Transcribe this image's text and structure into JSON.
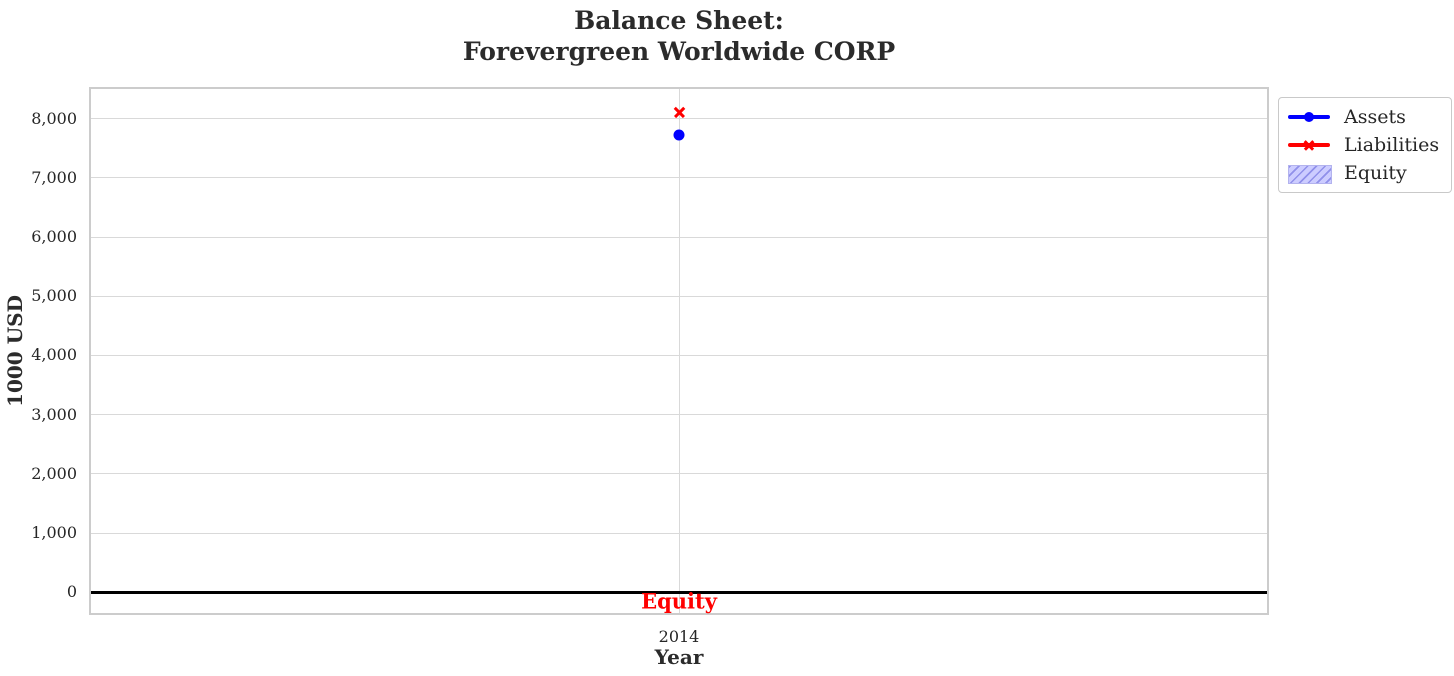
{
  "figure": {
    "background": "#ffffff"
  },
  "chart_data": {
    "type": "line",
    "title": "Balance Sheet:\nForevergreen Worldwide CORP",
    "xlabel": "Year",
    "ylabel": "1000 USD",
    "x": [
      2014
    ],
    "x_tick_labels": [
      "2014"
    ],
    "series": [
      {
        "name": "Assets",
        "values": [
          7720
        ],
        "color": "#0000ff",
        "marker": "circle"
      },
      {
        "name": "Liabilities",
        "values": [
          8100
        ],
        "color": "#ff0000",
        "marker": "x"
      },
      {
        "name": "Equity",
        "values": [],
        "color": "#ccccff",
        "hatch_color": "#9090ea",
        "style": "hatched-area"
      }
    ],
    "annotation": {
      "text": "Equity",
      "x": 2014,
      "y": -150,
      "color": "#ff0000"
    },
    "y_ticks": [
      0,
      1000,
      2000,
      3000,
      4000,
      5000,
      6000,
      7000,
      8000
    ],
    "y_tick_labels": [
      "0",
      "1,000",
      "2,000",
      "3,000",
      "4,000",
      "5,000",
      "6,000",
      "7,000",
      "8,000"
    ],
    "ylim": [
      -350,
      8500
    ],
    "xlim": [
      2013.5,
      2014.5
    ],
    "grid": true,
    "zero_line_y": 0,
    "legend_position": "outside-top-right",
    "colors": {
      "grid": "#d9d9d9",
      "spine": "#cccccc",
      "tick_text": "#262626",
      "zero_line": "#000000",
      "title_text": "#2b2b2b"
    }
  },
  "legend": {
    "items": [
      {
        "label": "Assets",
        "color": "#0000ff",
        "glyph": "line-circle"
      },
      {
        "label": "Liabilities",
        "color": "#ff0000",
        "glyph": "line-x"
      },
      {
        "label": "Equity",
        "color": "#ccccff",
        "hatch_color": "#9090ea",
        "glyph": "hatched-patch"
      }
    ]
  }
}
